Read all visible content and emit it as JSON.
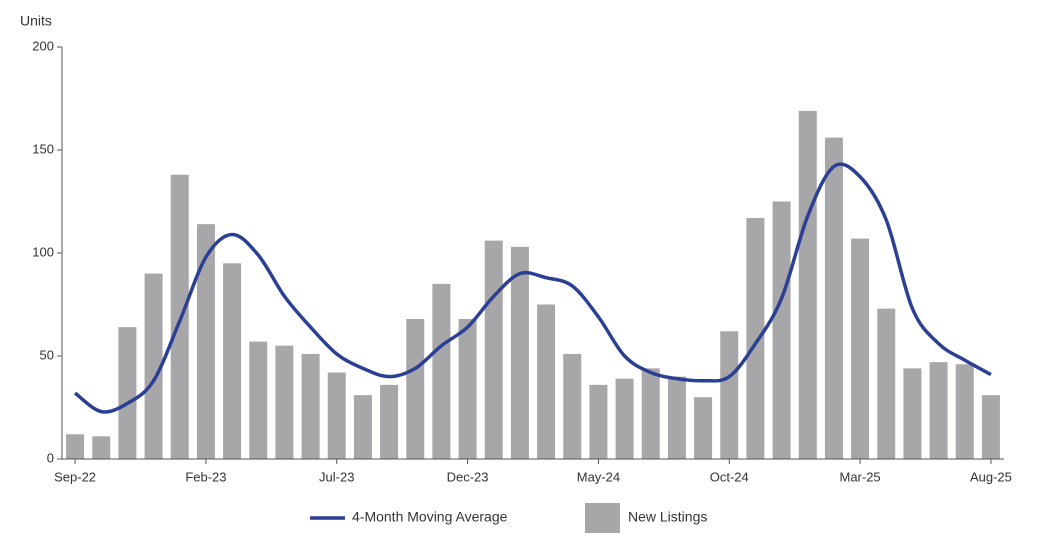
{
  "chart_data": {
    "type": "bar+line",
    "y_label": "Units",
    "categories": [
      "Sep-22",
      null,
      null,
      null,
      null,
      "Feb-23",
      null,
      null,
      null,
      null,
      "Jul-23",
      null,
      null,
      null,
      null,
      "Dec-23",
      null,
      null,
      null,
      null,
      "May-24",
      null,
      null,
      null,
      null,
      "Oct-24",
      null,
      null,
      null,
      null,
      "Mar-25",
      null,
      null,
      null,
      null,
      "Aug-25"
    ],
    "series": [
      {
        "name": "New Listings",
        "type": "bar",
        "color": "#a7a7a9",
        "values": [
          12,
          11,
          64,
          90,
          138,
          114,
          95,
          57,
          55,
          51,
          42,
          31,
          36,
          68,
          85,
          68,
          106,
          103,
          75,
          51,
          36,
          39,
          44,
          40,
          30,
          62,
          117,
          125,
          169,
          156,
          107,
          73,
          44,
          47,
          46,
          31
        ]
      },
      {
        "name": "4-Month Moving Average",
        "type": "line",
        "color": "#2b3f95",
        "values": [
          32,
          23,
          27,
          38,
          67,
          98,
          109,
          99,
          79,
          64,
          51,
          44,
          40,
          44,
          55,
          64,
          79,
          90,
          88,
          84,
          69,
          50,
          42,
          39,
          38,
          40,
          56,
          78,
          118,
          142,
          137,
          116,
          73,
          56,
          48,
          41
        ]
      }
    ],
    "ylim": [
      0,
      200
    ],
    "yticks": [
      0,
      50,
      100,
      150,
      200
    ]
  }
}
